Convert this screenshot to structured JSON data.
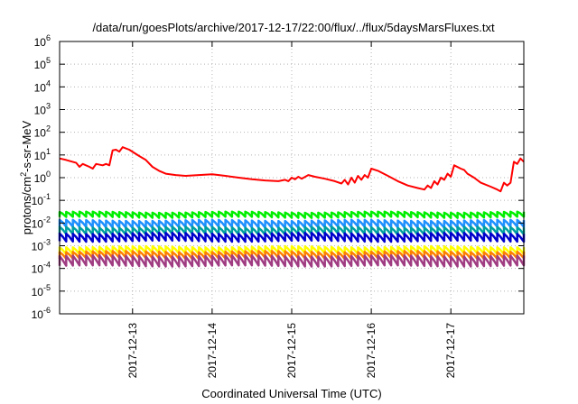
{
  "chart_data": {
    "type": "line",
    "title": "/data/run/goesPlots/archive/2017-12-17/22:00/flux/../flux/5daysMarsFluxes.txt",
    "xlabel": "Coordinated Universal Time (UTC)",
    "ylabel": {
      "prefix": "protons/cm",
      "sup": "2",
      "suffix": "-s-sr-MeV"
    },
    "y_scale": "log",
    "ylim": [
      1e-06,
      1000000.0
    ],
    "y_ticks": [
      {
        "base": "10",
        "exp": "-6",
        "value": 1e-06
      },
      {
        "base": "10",
        "exp": "-5",
        "value": 1e-05
      },
      {
        "base": "10",
        "exp": "-4",
        "value": 0.0001
      },
      {
        "base": "10",
        "exp": "-3",
        "value": 0.001
      },
      {
        "base": "10",
        "exp": "-2",
        "value": 0.01
      },
      {
        "base": "10",
        "exp": "-1",
        "value": 0.1
      },
      {
        "base": "10",
        "exp": "0",
        "value": 1
      },
      {
        "base": "10",
        "exp": "1",
        "value": 10
      },
      {
        "base": "10",
        "exp": "2",
        "value": 100
      },
      {
        "base": "10",
        "exp": "3",
        "value": 1000
      },
      {
        "base": "10",
        "exp": "4",
        "value": 10000
      },
      {
        "base": "10",
        "exp": "5",
        "value": 100000
      },
      {
        "base": "10",
        "exp": "6",
        "value": 1000000
      }
    ],
    "xlim": [
      "2017-12-12T02:00",
      "2017-12-17T22:00"
    ],
    "x_ticks": [
      "2017-12-13",
      "2017-12-14",
      "2017-12-15",
      "2017-12-16",
      "2017-12-17"
    ],
    "grid": true,
    "legend": "none",
    "colors": [
      "#ff0000",
      "#00ee00",
      "#1e90ff",
      "#00a0a0",
      "#0000cc",
      "#ffff00",
      "#ff7f00",
      "#a03c82"
    ],
    "series": [
      {
        "color": "#ff0000",
        "values": [
          [
            "2017-12-12T02:00",
            7
          ],
          [
            "2017-12-12T04:00",
            6
          ],
          [
            "2017-12-12T07:00",
            4.5
          ],
          [
            "2017-12-12T08:00",
            3
          ],
          [
            "2017-12-12T09:00",
            4
          ],
          [
            "2017-12-12T11:00",
            3
          ],
          [
            "2017-12-12T12:00",
            2.5
          ],
          [
            "2017-12-12T13:00",
            4
          ],
          [
            "2017-12-12T15:00",
            3.5
          ],
          [
            "2017-12-12T16:00",
            4
          ],
          [
            "2017-12-12T17:00",
            3.5
          ],
          [
            "2017-12-12T18:00",
            16
          ],
          [
            "2017-12-12T19:00",
            17
          ],
          [
            "2017-12-12T20:00",
            14
          ],
          [
            "2017-12-12T21:00",
            22
          ],
          [
            "2017-12-12T23:00",
            17
          ],
          [
            "2017-12-13T02:00",
            9
          ],
          [
            "2017-12-13T04:00",
            6
          ],
          [
            "2017-12-13T06:00",
            3
          ],
          [
            "2017-12-13T08:00",
            2
          ],
          [
            "2017-12-13T10:00",
            1.5
          ],
          [
            "2017-12-13T13:00",
            1.3
          ],
          [
            "2017-12-13T16:00",
            1.2
          ],
          [
            "2017-12-13T20:00",
            1.3
          ],
          [
            "2017-12-14T00:00",
            1.4
          ],
          [
            "2017-12-14T04:00",
            1.2
          ],
          [
            "2017-12-14T08:00",
            1.0
          ],
          [
            "2017-12-14T12:00",
            0.85
          ],
          [
            "2017-12-14T16:00",
            0.75
          ],
          [
            "2017-12-14T20:00",
            0.7
          ],
          [
            "2017-12-14T22:00",
            0.8
          ],
          [
            "2017-12-14T23:00",
            0.7
          ],
          [
            "2017-12-15T00:00",
            1.0
          ],
          [
            "2017-12-15T01:00",
            0.85
          ],
          [
            "2017-12-15T02:00",
            1.1
          ],
          [
            "2017-12-15T03:00",
            0.9
          ],
          [
            "2017-12-15T05:00",
            1.3
          ],
          [
            "2017-12-15T07:00",
            1.1
          ],
          [
            "2017-12-15T10:00",
            0.9
          ],
          [
            "2017-12-15T13:00",
            0.7
          ],
          [
            "2017-12-15T15:00",
            0.55
          ],
          [
            "2017-12-15T16:00",
            0.8
          ],
          [
            "2017-12-15T17:00",
            0.5
          ],
          [
            "2017-12-15T18:00",
            1.0
          ],
          [
            "2017-12-15T19:00",
            0.6
          ],
          [
            "2017-12-15T20:00",
            1.2
          ],
          [
            "2017-12-15T21:00",
            0.8
          ],
          [
            "2017-12-15T22:00",
            1.3
          ],
          [
            "2017-12-15T23:00",
            1.0
          ],
          [
            "2017-12-16T00:00",
            2.5
          ],
          [
            "2017-12-16T02:00",
            2.0
          ],
          [
            "2017-12-16T05:00",
            1.2
          ],
          [
            "2017-12-16T08:00",
            0.7
          ],
          [
            "2017-12-16T11:00",
            0.45
          ],
          [
            "2017-12-16T14:00",
            0.35
          ],
          [
            "2017-12-16T16:00",
            0.3
          ],
          [
            "2017-12-16T17:00",
            0.45
          ],
          [
            "2017-12-16T18:00",
            0.35
          ],
          [
            "2017-12-16T19:00",
            0.7
          ],
          [
            "2017-12-16T20:00",
            0.5
          ],
          [
            "2017-12-16T21:00",
            1.0
          ],
          [
            "2017-12-16T22:00",
            0.8
          ],
          [
            "2017-12-16T23:00",
            1.5
          ],
          [
            "2017-12-17T00:00",
            1.1
          ],
          [
            "2017-12-17T01:00",
            3.5
          ],
          [
            "2017-12-17T03:00",
            2.5
          ],
          [
            "2017-12-17T04:00",
            2.2
          ],
          [
            "2017-12-17T05:00",
            1.5
          ],
          [
            "2017-12-17T07:00",
            1.0
          ],
          [
            "2017-12-17T09:00",
            0.6
          ],
          [
            "2017-12-17T12:00",
            0.4
          ],
          [
            "2017-12-17T14:00",
            0.3
          ],
          [
            "2017-12-17T15:00",
            0.25
          ],
          [
            "2017-12-17T16:00",
            0.6
          ],
          [
            "2017-12-17T17:00",
            0.45
          ],
          [
            "2017-12-17T18:00",
            0.6
          ],
          [
            "2017-12-17T19:00",
            5
          ],
          [
            "2017-12-17T20:00",
            4
          ],
          [
            "2017-12-17T21:00",
            7
          ],
          [
            "2017-12-17T22:00",
            5
          ]
        ]
      },
      {
        "color": "#00ee00",
        "pattern": "sawtooth-2h",
        "high": 0.03,
        "low": 0.018
      },
      {
        "color": "#1e90ff",
        "pattern": "sawtooth-2h",
        "high": 0.013,
        "low": 0.0065
      },
      {
        "color": "#00a0a0",
        "pattern": "sawtooth-2h",
        "high": 0.0065,
        "low": 0.0032
      },
      {
        "color": "#0000cc",
        "pattern": "sawtooth-2h",
        "high": 0.0035,
        "low": 0.0016
      },
      {
        "color": "#ffff00",
        "pattern": "sawtooth-2h",
        "high": 0.0009,
        "low": 0.00045
      },
      {
        "color": "#ff7f00",
        "pattern": "sawtooth-2h",
        "high": 0.00055,
        "low": 0.00028
      },
      {
        "color": "#a03c82",
        "pattern": "sawtooth-2h",
        "high": 0.00035,
        "low": 0.00013
      }
    ]
  }
}
